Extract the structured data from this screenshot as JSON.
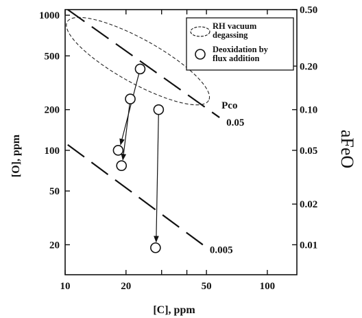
{
  "chart_data": {
    "type": "scatter",
    "x_scale": "log",
    "y_scale": "log",
    "xlim": [
      10,
      140
    ],
    "ylim": [
      12,
      1100
    ],
    "xlabel": "[C], ppm",
    "ylabel": "[O], ppm",
    "right_axis_label": "aFeO",
    "x_ticks": [
      10,
      20,
      30,
      40,
      50,
      100
    ],
    "x_tick_labels": [
      "10",
      "20",
      "50",
      "100"
    ],
    "x_tick_label_values": [
      10,
      20,
      50,
      100
    ],
    "y_ticks": [
      20,
      50,
      100,
      200,
      500,
      1000
    ],
    "y_tick_labels": [
      "20",
      "50",
      "100",
      "200",
      "500",
      "1000"
    ],
    "right_ticks": [
      {
        "o": 1100,
        "label": "0.50"
      },
      {
        "o": 420,
        "label": "0.20"
      },
      {
        "o": 200,
        "label": "0.10"
      },
      {
        "o": 100,
        "label": "0.05"
      },
      {
        "o": 40,
        "label": "0.02"
      },
      {
        "o": 20,
        "label": "0.01"
      }
    ],
    "lines": [
      {
        "label": "0.05",
        "x": [
          10.3,
          58
        ],
        "y": [
          1100,
          175
        ]
      },
      {
        "label": "0.005",
        "x": [
          10.3,
          48
        ],
        "y": [
          110,
          20
        ]
      }
    ],
    "pco_label": "Pco",
    "rh_region": {
      "cx_log": 1.36,
      "cy_log": 2.66,
      "label": "RH vacuum degassing"
    },
    "points": [
      {
        "x": 23.5,
        "y": 400
      },
      {
        "x": 21,
        "y": 240
      },
      {
        "x": 18.3,
        "y": 100
      },
      {
        "x": 19,
        "y": 77
      },
      {
        "x": 29,
        "y": 200
      },
      {
        "x": 28,
        "y": 19
      }
    ],
    "arrows": [
      {
        "from": [
          23.5,
          400
        ],
        "to": [
          18.8,
          110
        ]
      },
      {
        "from": [
          21,
          240
        ],
        "to": [
          19.3,
          85
        ]
      },
      {
        "from": [
          29,
          200
        ],
        "to": [
          28.2,
          21
        ]
      }
    ],
    "legend": [
      {
        "marker": "dashed-ellipse",
        "label": "RH vacuum degassing"
      },
      {
        "marker": "circle",
        "label": "Deoxidation by flux addition"
      }
    ]
  }
}
